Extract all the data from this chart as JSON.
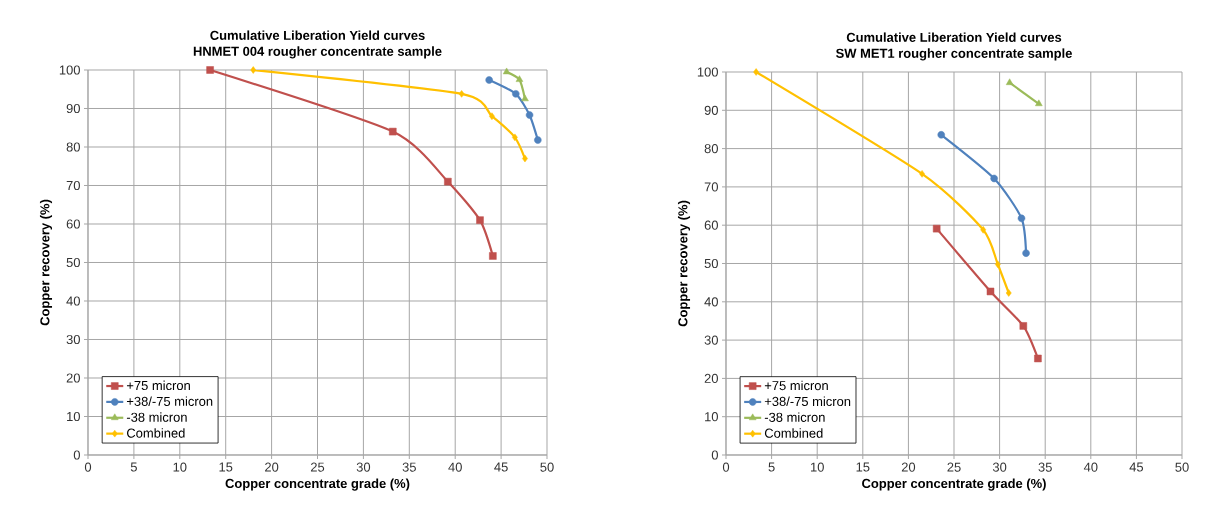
{
  "chart_data": [
    {
      "type": "line",
      "title": "Cumulative Liberation Yield curves",
      "subtitle": "HNMET 004  rougher concentrate sample",
      "xlabel": "Copper concentrate grade (%)",
      "ylabel": "Copper recovery (%)",
      "xlim": [
        0,
        50
      ],
      "xticks": [
        0,
        5,
        10,
        15,
        20,
        25,
        30,
        35,
        40,
        45,
        50
      ],
      "ylim": [
        0,
        100
      ],
      "yticks": [
        0,
        10,
        20,
        30,
        40,
        50,
        60,
        70,
        80,
        90,
        100
      ],
      "grid": true,
      "legend": "bottom left",
      "line_style": "solid",
      "series": [
        {
          "name": "+75 micron",
          "color": "#c0504d",
          "marker": "square",
          "x": [
            13.3,
            33.2,
            39.2,
            42.7,
            44.1
          ],
          "values": [
            100,
            84,
            71,
            61,
            51.7
          ]
        },
        {
          "name": "+38/-75 micron",
          "color": "#4f81bd",
          "marker": "circle",
          "x": [
            43.7,
            46.6,
            48.1,
            49
          ],
          "values": [
            97.4,
            93.8,
            88.3,
            81.8
          ]
        },
        {
          "name": "-38 micron",
          "color": "#9bbb59",
          "marker": "triangle",
          "x": [
            45.6,
            47,
            47.6
          ],
          "values": [
            99.5,
            97.5,
            92.5
          ]
        },
        {
          "name": "Combined",
          "color": "#ffc000",
          "marker": "diamond",
          "x": [
            18,
            40.7,
            44,
            46.5,
            47.6
          ],
          "values": [
            100,
            93.8,
            88,
            82.5,
            77
          ]
        }
      ]
    },
    {
      "type": "line",
      "title": "Cumulative Liberation Yield curves",
      "subtitle": "SW MET1  rougher concentrate sample",
      "xlabel": "Copper concentrate grade (%)",
      "ylabel": "Copper recovery (%)",
      "xlim": [
        0,
        50
      ],
      "xticks": [
        0,
        5,
        10,
        15,
        20,
        25,
        30,
        35,
        40,
        45,
        50
      ],
      "ylim": [
        0,
        100
      ],
      "yticks": [
        0,
        10,
        20,
        30,
        40,
        50,
        60,
        70,
        80,
        90,
        100
      ],
      "grid": true,
      "legend": "bottom left",
      "line_style": "solid",
      "series": [
        {
          "name": "+75 micron",
          "color": "#c0504d",
          "marker": "square",
          "x": [
            23.1,
            29,
            32.6,
            34.2
          ],
          "values": [
            59.1,
            42.7,
            33.7,
            25.2
          ]
        },
        {
          "name": "+38/-75 micron",
          "color": "#4f81bd",
          "marker": "circle",
          "x": [
            23.6,
            29.4,
            32.4,
            32.9
          ],
          "values": [
            83.6,
            72.2,
            61.8,
            52.7
          ]
        },
        {
          "name": "-38 micron",
          "color": "#9bbb59",
          "marker": "triangle",
          "x": [
            31.1,
            34.3
          ],
          "values": [
            97.2,
            91.7
          ]
        },
        {
          "name": "Combined",
          "color": "#ffc000",
          "marker": "diamond",
          "x": [
            3.3,
            21.5,
            28.2,
            29.8,
            31
          ],
          "values": [
            100,
            73.4,
            58.8,
            49.8,
            42.3
          ]
        }
      ]
    }
  ]
}
